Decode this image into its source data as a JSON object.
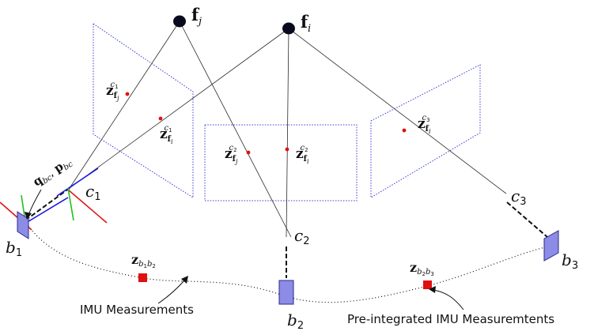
{
  "features": {
    "fj": {
      "main": "f",
      "sub": "j"
    },
    "fi": {
      "main": "f",
      "sub": "i"
    }
  },
  "observations": {
    "c1_fj": {
      "main": "z",
      "sub": "f",
      "subsub": "j",
      "sup": "c",
      "supsub": "1"
    },
    "c1_fi": {
      "main": "z",
      "sub": "f",
      "subsub": "i",
      "sup": "c",
      "supsub": "1"
    },
    "c2_fj": {
      "main": "z",
      "sub": "f",
      "subsub": "j",
      "sup": "c",
      "supsub": "2"
    },
    "c2_fi": {
      "main": "z",
      "sub": "f",
      "subsub": "i",
      "sup": "c",
      "supsub": "2"
    },
    "c3_fi": {
      "main": "z",
      "sub": "f",
      "subsub": "i",
      "sup": "c",
      "supsub": "3"
    }
  },
  "cameras": {
    "c1": {
      "main": "c",
      "sub": "1"
    },
    "c2": {
      "main": "c",
      "sub": "2"
    },
    "c3": {
      "main": "c",
      "sub": "3"
    }
  },
  "bodies": {
    "b1": {
      "main": "b",
      "sub": "1"
    },
    "b2": {
      "main": "b",
      "sub": "2"
    },
    "b3": {
      "main": "b",
      "sub": "3"
    }
  },
  "extrinsics": {
    "q": "q",
    "q_sub": "bc",
    "sep": ", ",
    "p": "p",
    "p_sub": "bc"
  },
  "imu_terms": {
    "z_b1b2": {
      "main": "z",
      "sub1": "b",
      "sub1sub": "1",
      "sub2": "b",
      "sub2sub": "2"
    },
    "z_b2b3": {
      "main": "z",
      "sub1": "b",
      "sub1sub": "2",
      "sub2": "b",
      "sub2sub": "3"
    }
  },
  "annotations": {
    "imu_measurements": "IMU Measurements",
    "preintegrated": "Pre-integrated IMU Measuremtents"
  },
  "colors": {
    "plane": "#3a3ad6",
    "feature": "#0a0a1e",
    "observation": "#e01010",
    "imu_term": "#e01010",
    "body": "#8c8ce6",
    "axis_red": "#e01818",
    "axis_green": "#20c020",
    "axis_blue": "#1818e0"
  }
}
